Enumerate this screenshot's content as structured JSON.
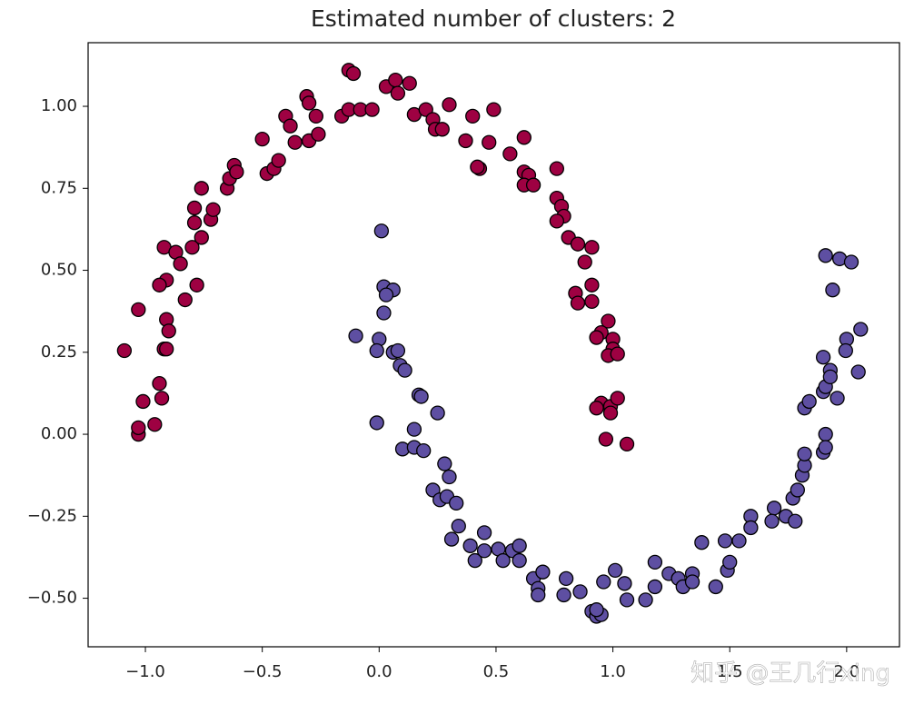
{
  "chart_data": {
    "type": "scatter",
    "title": "Estimated number of clusters: 2",
    "xlim": [
      -1.245,
      2.226
    ],
    "ylim": [
      -0.648,
      1.194
    ],
    "xticks": [
      {
        "value": -1,
        "label": "−1.0"
      },
      {
        "value": -0.5,
        "label": "−0.5"
      },
      {
        "value": 0,
        "label": "0.0"
      },
      {
        "value": 0.5,
        "label": "0.5"
      },
      {
        "value": 1,
        "label": "1.0"
      },
      {
        "value": 1.5,
        "label": "1.5"
      },
      {
        "value": 2,
        "label": "2.0"
      }
    ],
    "yticks": [
      {
        "value": -0.5,
        "label": "−0.50"
      },
      {
        "value": -0.25,
        "label": "−0.25"
      },
      {
        "value": 0,
        "label": "0.00"
      },
      {
        "value": 0.25,
        "label": "0.25"
      },
      {
        "value": 0.5,
        "label": "0.50"
      },
      {
        "value": 0.75,
        "label": "0.75"
      },
      {
        "value": 1,
        "label": "1.00"
      }
    ],
    "grid": false,
    "series": [
      {
        "color": "#9e0142",
        "x": [
          -1.09,
          -1.03,
          -1.03,
          -1.01,
          -1.03,
          -0.96,
          -0.93,
          -0.94,
          -0.92,
          -0.91,
          -0.91,
          -0.9,
          -0.92,
          -0.91,
          -0.94,
          -0.87,
          -0.85,
          -0.83,
          -0.8,
          -0.78,
          -0.79,
          -0.79,
          -0.76,
          -0.76,
          -0.72,
          -0.71,
          -0.65,
          -0.64,
          -0.62,
          -0.61,
          -0.5,
          -0.48,
          -0.45,
          -0.43,
          -0.4,
          -0.38,
          -0.36,
          -0.3,
          -0.31,
          -0.3,
          -0.27,
          -0.26,
          -0.16,
          -0.13,
          -0.11,
          -0.13,
          -0.08,
          -0.03,
          0.03,
          0.07,
          0.13,
          0.08,
          0.15,
          0.2,
          0.23,
          0.24,
          0.27,
          0.3,
          0.37,
          0.4,
          0.43,
          0.42,
          0.47,
          0.49,
          0.56,
          0.62,
          0.62,
          0.64,
          0.62,
          0.66,
          0.76,
          0.76,
          0.78,
          0.79,
          0.76,
          0.81,
          0.85,
          0.91,
          0.88,
          0.91,
          0.84,
          0.85,
          0.91,
          0.98,
          0.95,
          0.93,
          1.0,
          1.0,
          0.98,
          1.02,
          0.95,
          0.93,
          0.99,
          1.02,
          0.99,
          0.97,
          1.06
        ],
        "y": [
          0.255,
          0.0,
          0.02,
          0.1,
          0.38,
          0.03,
          0.11,
          0.155,
          0.26,
          0.26,
          0.35,
          0.315,
          0.57,
          0.47,
          0.455,
          0.555,
          0.52,
          0.41,
          0.57,
          0.455,
          0.645,
          0.69,
          0.6,
          0.75,
          0.655,
          0.685,
          0.75,
          0.78,
          0.82,
          0.8,
          0.9,
          0.795,
          0.81,
          0.835,
          0.97,
          0.94,
          0.89,
          0.895,
          1.03,
          1.01,
          0.97,
          0.915,
          0.97,
          1.11,
          1.1,
          0.99,
          0.99,
          0.99,
          1.06,
          1.08,
          1.07,
          1.04,
          0.975,
          0.99,
          0.96,
          0.93,
          0.93,
          1.005,
          0.895,
          0.97,
          0.81,
          0.815,
          0.89,
          0.99,
          0.855,
          0.905,
          0.8,
          0.79,
          0.76,
          0.76,
          0.81,
          0.72,
          0.695,
          0.665,
          0.65,
          0.6,
          0.58,
          0.57,
          0.525,
          0.455,
          0.43,
          0.4,
          0.405,
          0.345,
          0.31,
          0.295,
          0.29,
          0.26,
          0.24,
          0.245,
          0.095,
          0.08,
          0.085,
          0.11,
          0.065,
          -0.015,
          -0.03
        ]
      },
      {
        "color": "#5e4fa2",
        "x": [
          0.01,
          0.02,
          0.06,
          0.03,
          0.02,
          -0.1,
          0.0,
          -0.01,
          0.06,
          0.08,
          0.09,
          0.11,
          -0.01,
          0.17,
          0.18,
          0.15,
          0.1,
          0.15,
          0.19,
          0.25,
          0.28,
          0.3,
          0.23,
          0.26,
          0.29,
          0.33,
          0.34,
          0.31,
          0.39,
          0.41,
          0.45,
          0.45,
          0.51,
          0.53,
          0.57,
          0.6,
          0.6,
          0.66,
          0.68,
          0.68,
          0.7,
          0.8,
          0.79,
          0.86,
          0.91,
          0.93,
          0.95,
          0.93,
          0.96,
          1.01,
          1.05,
          1.06,
          1.14,
          1.18,
          1.18,
          1.24,
          1.28,
          1.3,
          1.34,
          1.34,
          1.38,
          1.44,
          1.49,
          1.5,
          1.48,
          1.54,
          1.59,
          1.59,
          1.69,
          1.68,
          1.74,
          1.78,
          1.77,
          1.79,
          1.81,
          1.82,
          1.82,
          1.82,
          1.84,
          1.9,
          1.91,
          1.91,
          1.9,
          1.91,
          1.93,
          1.93,
          1.9,
          1.96,
          1.91,
          1.97,
          2.02,
          1.94,
          2.0,
          1.996,
          2.06,
          2.05
        ],
        "y": [
          0.62,
          0.45,
          0.44,
          0.425,
          0.37,
          0.3,
          0.29,
          0.255,
          0.25,
          0.255,
          0.21,
          0.195,
          0.035,
          0.12,
          0.115,
          0.015,
          -0.045,
          -0.04,
          -0.05,
          0.065,
          -0.09,
          -0.13,
          -0.17,
          -0.2,
          -0.19,
          -0.21,
          -0.28,
          -0.32,
          -0.34,
          -0.385,
          -0.3,
          -0.355,
          -0.35,
          -0.385,
          -0.355,
          -0.34,
          -0.385,
          -0.44,
          -0.47,
          -0.49,
          -0.42,
          -0.44,
          -0.49,
          -0.48,
          -0.54,
          -0.555,
          -0.55,
          -0.535,
          -0.45,
          -0.415,
          -0.455,
          -0.505,
          -0.505,
          -0.39,
          -0.465,
          -0.425,
          -0.44,
          -0.465,
          -0.425,
          -0.45,
          -0.33,
          -0.465,
          -0.415,
          -0.39,
          -0.325,
          -0.325,
          -0.25,
          -0.285,
          -0.225,
          -0.265,
          -0.25,
          -0.265,
          -0.195,
          -0.17,
          -0.125,
          -0.095,
          -0.06,
          0.08,
          0.1,
          -0.055,
          0.0,
          -0.04,
          0.13,
          0.145,
          0.195,
          0.175,
          0.235,
          0.11,
          0.545,
          0.535,
          0.525,
          0.44,
          0.29,
          0.255,
          0.32,
          0.19
        ]
      }
    ]
  },
  "watermark": "知乎 @王几行xing"
}
